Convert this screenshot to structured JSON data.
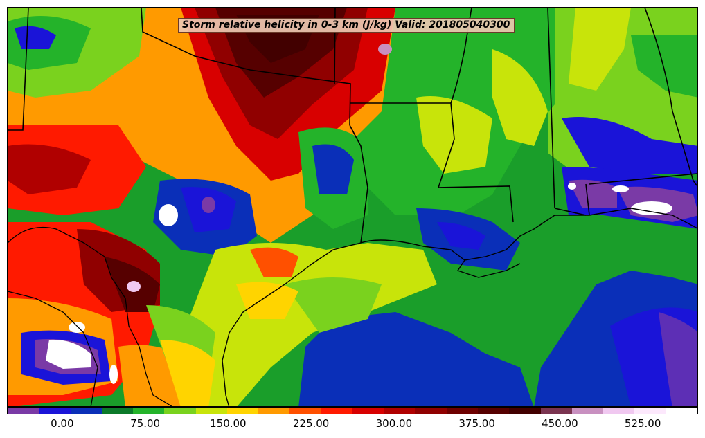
{
  "title": "Storm relative helicity in 0-3 km (J/kg) Valid: 201805040300",
  "colorbar": {
    "colors": [
      "#7a3aa6",
      "#1a14d8",
      "#0a2fb8",
      "#0c7a2a",
      "#24b32a",
      "#7ad21e",
      "#c8e40a",
      "#ffd400",
      "#ff9a00",
      "#ff5000",
      "#ff1a00",
      "#d80000",
      "#b00000",
      "#900000",
      "#6e0000",
      "#560000",
      "#420000",
      "#7a3450",
      "#c890c0",
      "#f0c8f0",
      "#fce8fc",
      "#ffffff"
    ],
    "tick_labels": [
      "0.00",
      "75.00",
      "150.00",
      "225.00",
      "300.00",
      "375.00",
      "450.00",
      "525.00"
    ],
    "min": -50,
    "max": 575,
    "tick_values": [
      0,
      75,
      150,
      225,
      300,
      375,
      450,
      525
    ]
  },
  "map": {
    "region": "South-central United States and Gulf of Mexico",
    "lines": [
      "state borders",
      "coastline",
      "Mexico border"
    ]
  }
}
